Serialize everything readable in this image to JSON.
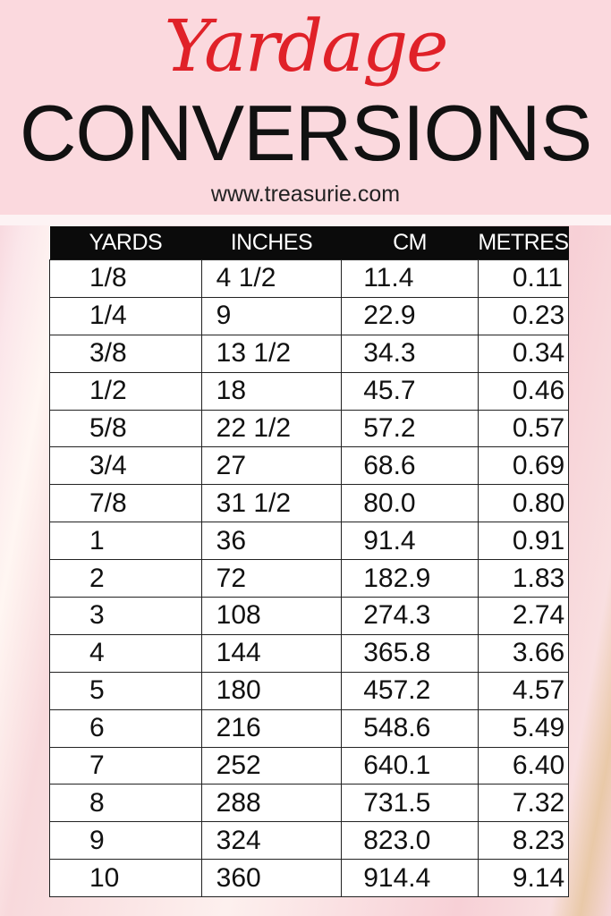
{
  "header": {
    "title_script": "Yardage",
    "title_main": "CONVERSIONS",
    "url": "www.treasurie.com",
    "colors": {
      "script": "#e02128",
      "band": "#fbd9de",
      "table_header": "#0b0b0b"
    }
  },
  "table": {
    "columns": [
      "YARDS",
      "INCHES",
      "CM",
      "METRES"
    ],
    "rows": [
      [
        "1/8",
        "4 1/2",
        "11.4",
        "0.11"
      ],
      [
        "1/4",
        "9",
        "22.9",
        "0.23"
      ],
      [
        "3/8",
        "13 1/2",
        "34.3",
        "0.34"
      ],
      [
        "1/2",
        "18",
        "45.7",
        "0.46"
      ],
      [
        "5/8",
        "22 1/2",
        "57.2",
        "0.57"
      ],
      [
        "3/4",
        "27",
        "68.6",
        "0.69"
      ],
      [
        "7/8",
        "31 1/2",
        "80.0",
        "0.80"
      ],
      [
        "1",
        "36",
        "91.4",
        "0.91"
      ],
      [
        "2",
        "72",
        "182.9",
        "1.83"
      ],
      [
        "3",
        "108",
        "274.3",
        "2.74"
      ],
      [
        "4",
        "144",
        "365.8",
        "3.66"
      ],
      [
        "5",
        "180",
        "457.2",
        "4.57"
      ],
      [
        "6",
        "216",
        "548.6",
        "5.49"
      ],
      [
        "7",
        "252",
        "640.1",
        "6.40"
      ],
      [
        "8",
        "288",
        "731.5",
        "7.32"
      ],
      [
        "9",
        "324",
        "823.0",
        "8.23"
      ],
      [
        "10",
        "360",
        "914.4",
        "9.14"
      ]
    ]
  }
}
